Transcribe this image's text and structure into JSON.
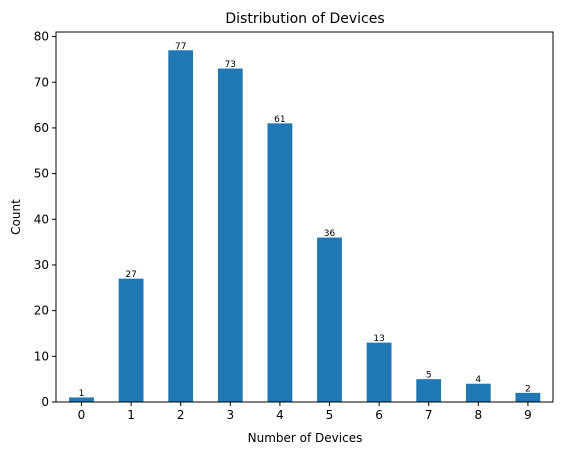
{
  "chart_data": {
    "type": "bar",
    "title": "Distribution of Devices",
    "xlabel": "Number of Devices",
    "ylabel": "Count",
    "categories": [
      "0",
      "1",
      "2",
      "3",
      "4",
      "5",
      "6",
      "7",
      "8",
      "9"
    ],
    "values": [
      1,
      27,
      77,
      73,
      61,
      36,
      13,
      5,
      4,
      2
    ],
    "data_labels": [
      "1",
      "27",
      "77",
      "73",
      "61",
      "36",
      "13",
      "5",
      "4",
      "2"
    ],
    "ylim": [
      0,
      81
    ],
    "yticks": [
      "0",
      "10",
      "20",
      "30",
      "40",
      "50",
      "60",
      "70",
      "80"
    ],
    "grid": false,
    "legend": "none",
    "bar_color": "#1f77b4"
  }
}
